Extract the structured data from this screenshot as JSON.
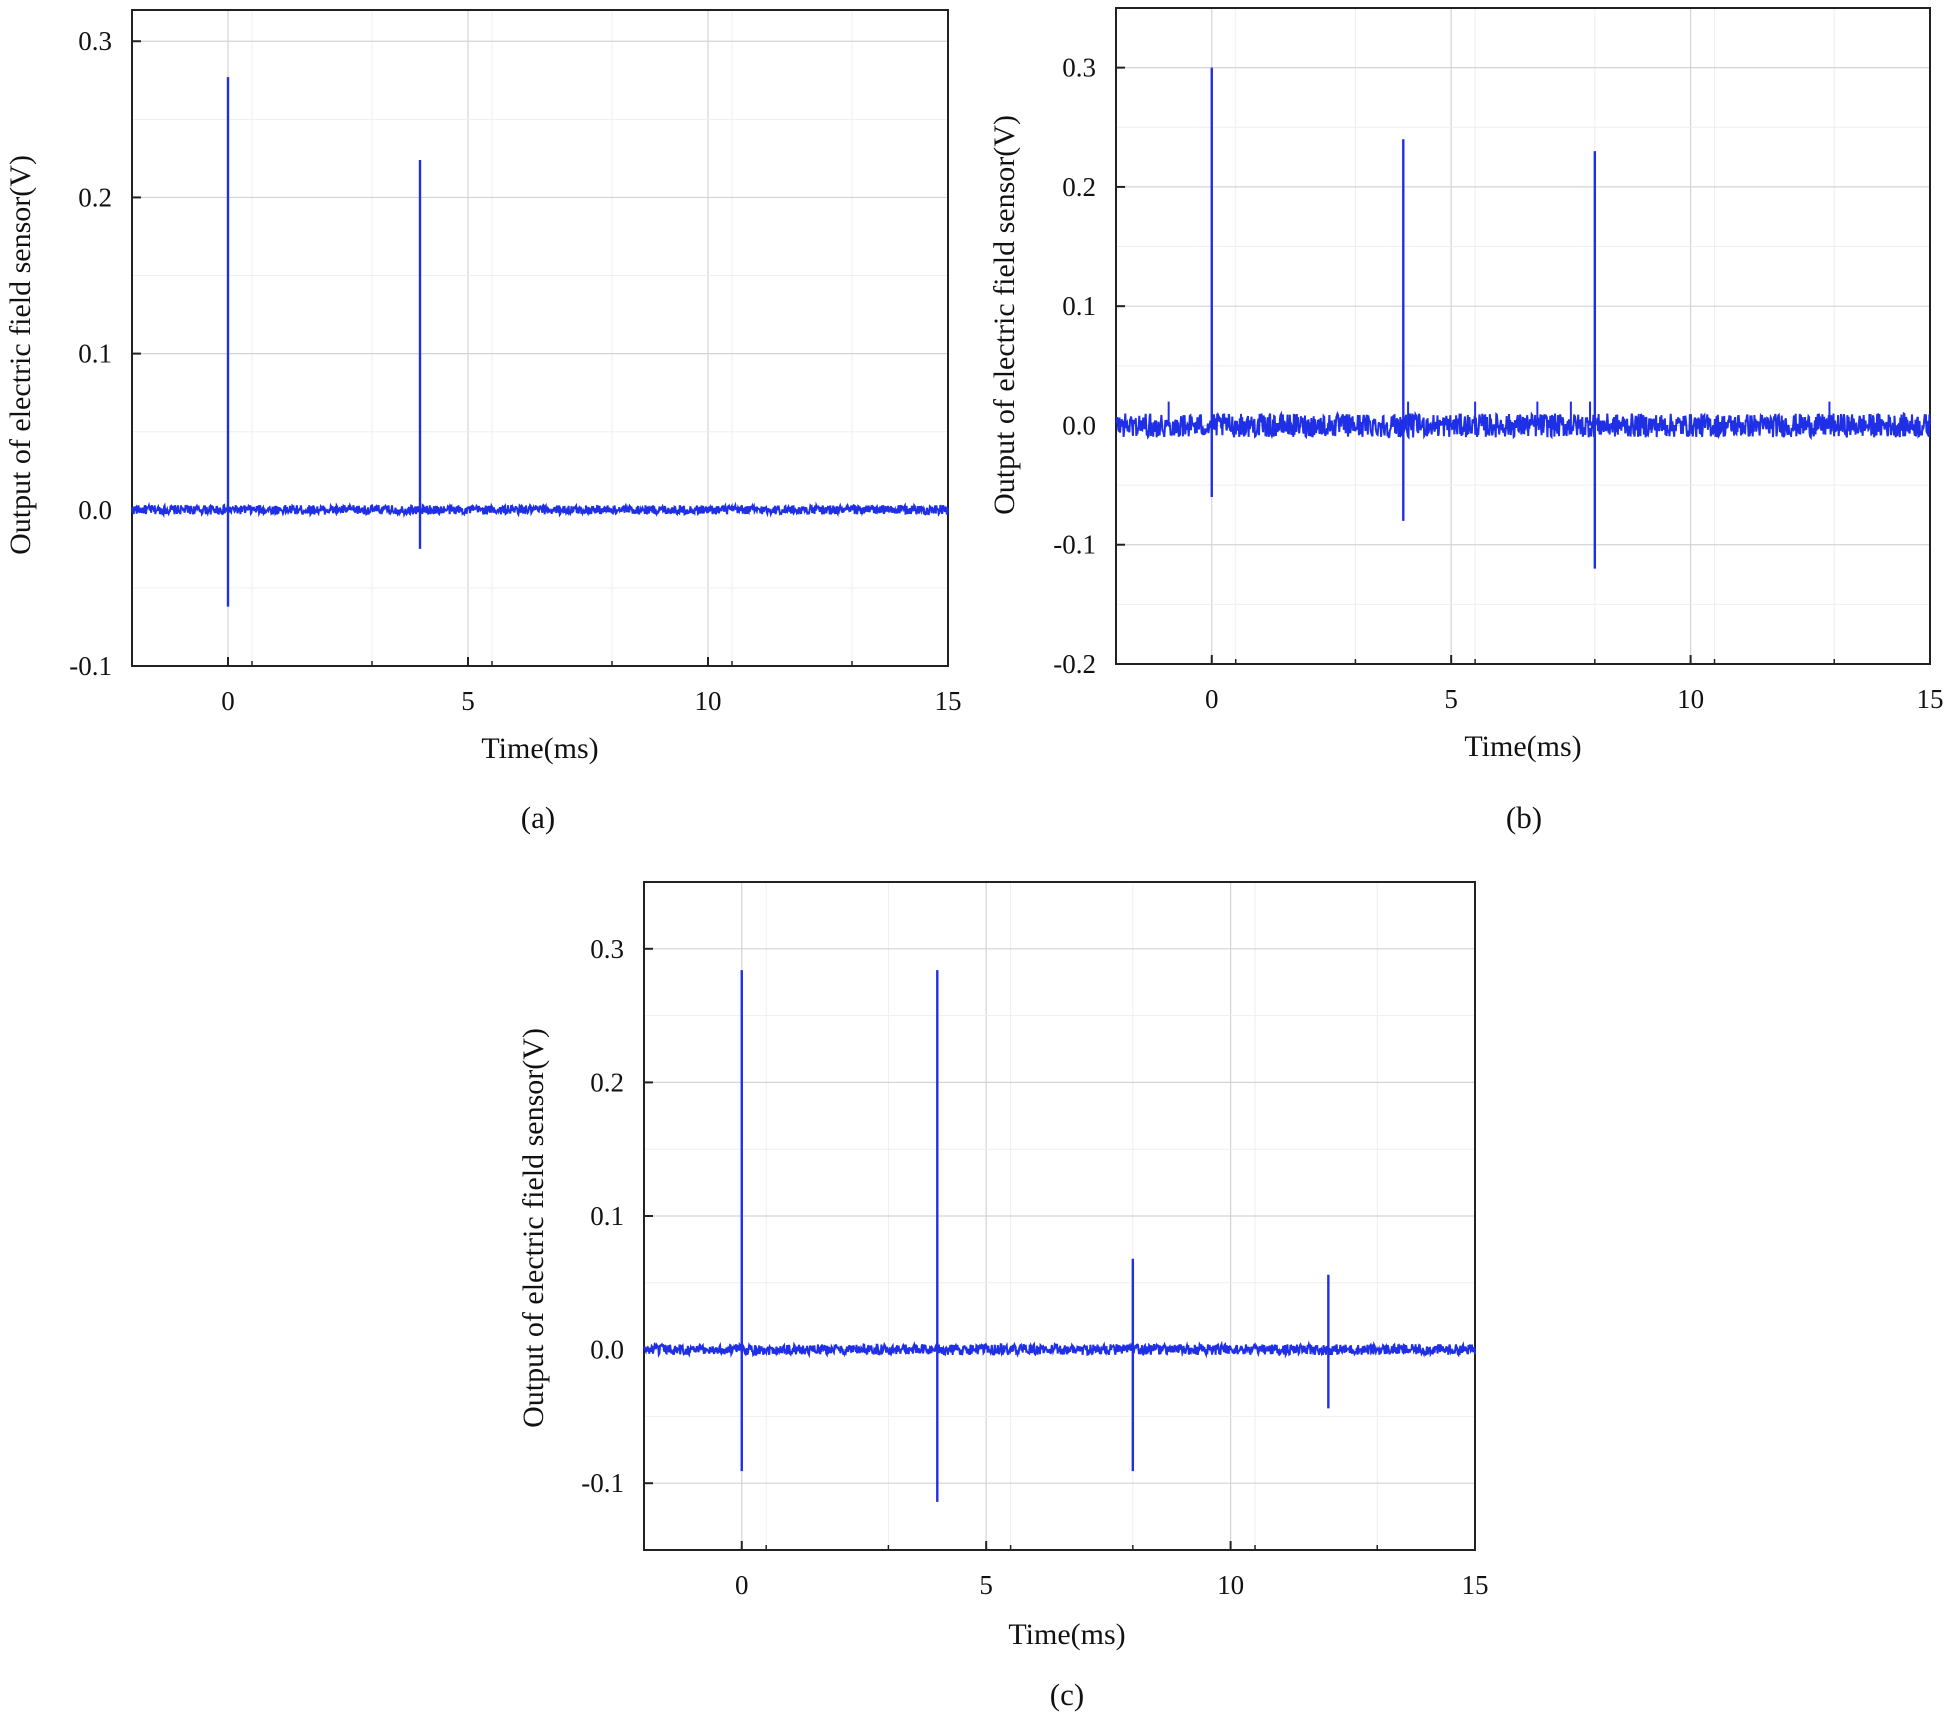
{
  "chart_data": [
    {
      "type": "line",
      "panel_label": "(a)",
      "xlabel": "Time(ms)",
      "ylabel": "Output of electric field sensor(V)",
      "xlim": [
        -2,
        15
      ],
      "ylim": [
        -0.1,
        0.32
      ],
      "x_ticks": [
        "0",
        "5",
        "10",
        "15"
      ],
      "y_ticks": [
        "0.3",
        "0.2",
        "0.1",
        "0.0",
        "-0.1"
      ],
      "grid": true,
      "line_color": "#1f2fe6",
      "baseline_noise_amplitude": 0.003,
      "pulses": [
        {
          "x": 0,
          "max": 0.277,
          "min": -0.062
        },
        {
          "x": 4,
          "max": 0.224,
          "min": -0.025
        }
      ]
    },
    {
      "type": "line",
      "panel_label": "(b)",
      "xlabel": "Time(ms)",
      "ylabel": "Output of electric field sensor(V)",
      "xlim": [
        -2,
        15
      ],
      "ylim": [
        -0.2,
        0.35
      ],
      "x_ticks": [
        "0",
        "5",
        "10",
        "15"
      ],
      "y_ticks": [
        "0.3",
        "0.2",
        "0.1",
        "0.0",
        "-0.1",
        "-0.2"
      ],
      "grid": true,
      "line_color": "#1f2fe6",
      "baseline_noise_amplitude": 0.01,
      "noise_spikes": [
        {
          "x": -0.9,
          "max": 0.02
        },
        {
          "x": 4.1,
          "max": 0.02
        },
        {
          "x": 5.5,
          "max": 0.02
        },
        {
          "x": 6.8,
          "max": 0.02
        },
        {
          "x": 7.5,
          "max": 0.02
        },
        {
          "x": 7.9,
          "max": 0.02
        },
        {
          "x": 12.9,
          "max": 0.02
        }
      ],
      "pulses": [
        {
          "x": 0,
          "max": 0.3,
          "min": -0.06
        },
        {
          "x": 4,
          "max": 0.24,
          "min": -0.08
        },
        {
          "x": 8,
          "max": 0.23,
          "min": -0.12
        }
      ]
    },
    {
      "type": "line",
      "panel_label": "(c)",
      "xlabel": "Time(ms)",
      "ylabel": "Output of electric field sensor(V)",
      "xlim": [
        -2,
        15
      ],
      "ylim": [
        -0.15,
        0.35
      ],
      "x_ticks": [
        "0",
        "5",
        "10",
        "15"
      ],
      "y_ticks": [
        "0.3",
        "0.2",
        "0.1",
        "0.0",
        "-0.1"
      ],
      "grid": true,
      "line_color": "#1f2fe6",
      "baseline_noise_amplitude": 0.004,
      "pulses": [
        {
          "x": 0,
          "max": 0.284,
          "min": -0.091
        },
        {
          "x": 4,
          "max": 0.284,
          "min": -0.114
        },
        {
          "x": 8,
          "max": 0.068,
          "min": -0.091
        },
        {
          "x": 12,
          "max": 0.056,
          "min": -0.044
        }
      ]
    }
  ]
}
